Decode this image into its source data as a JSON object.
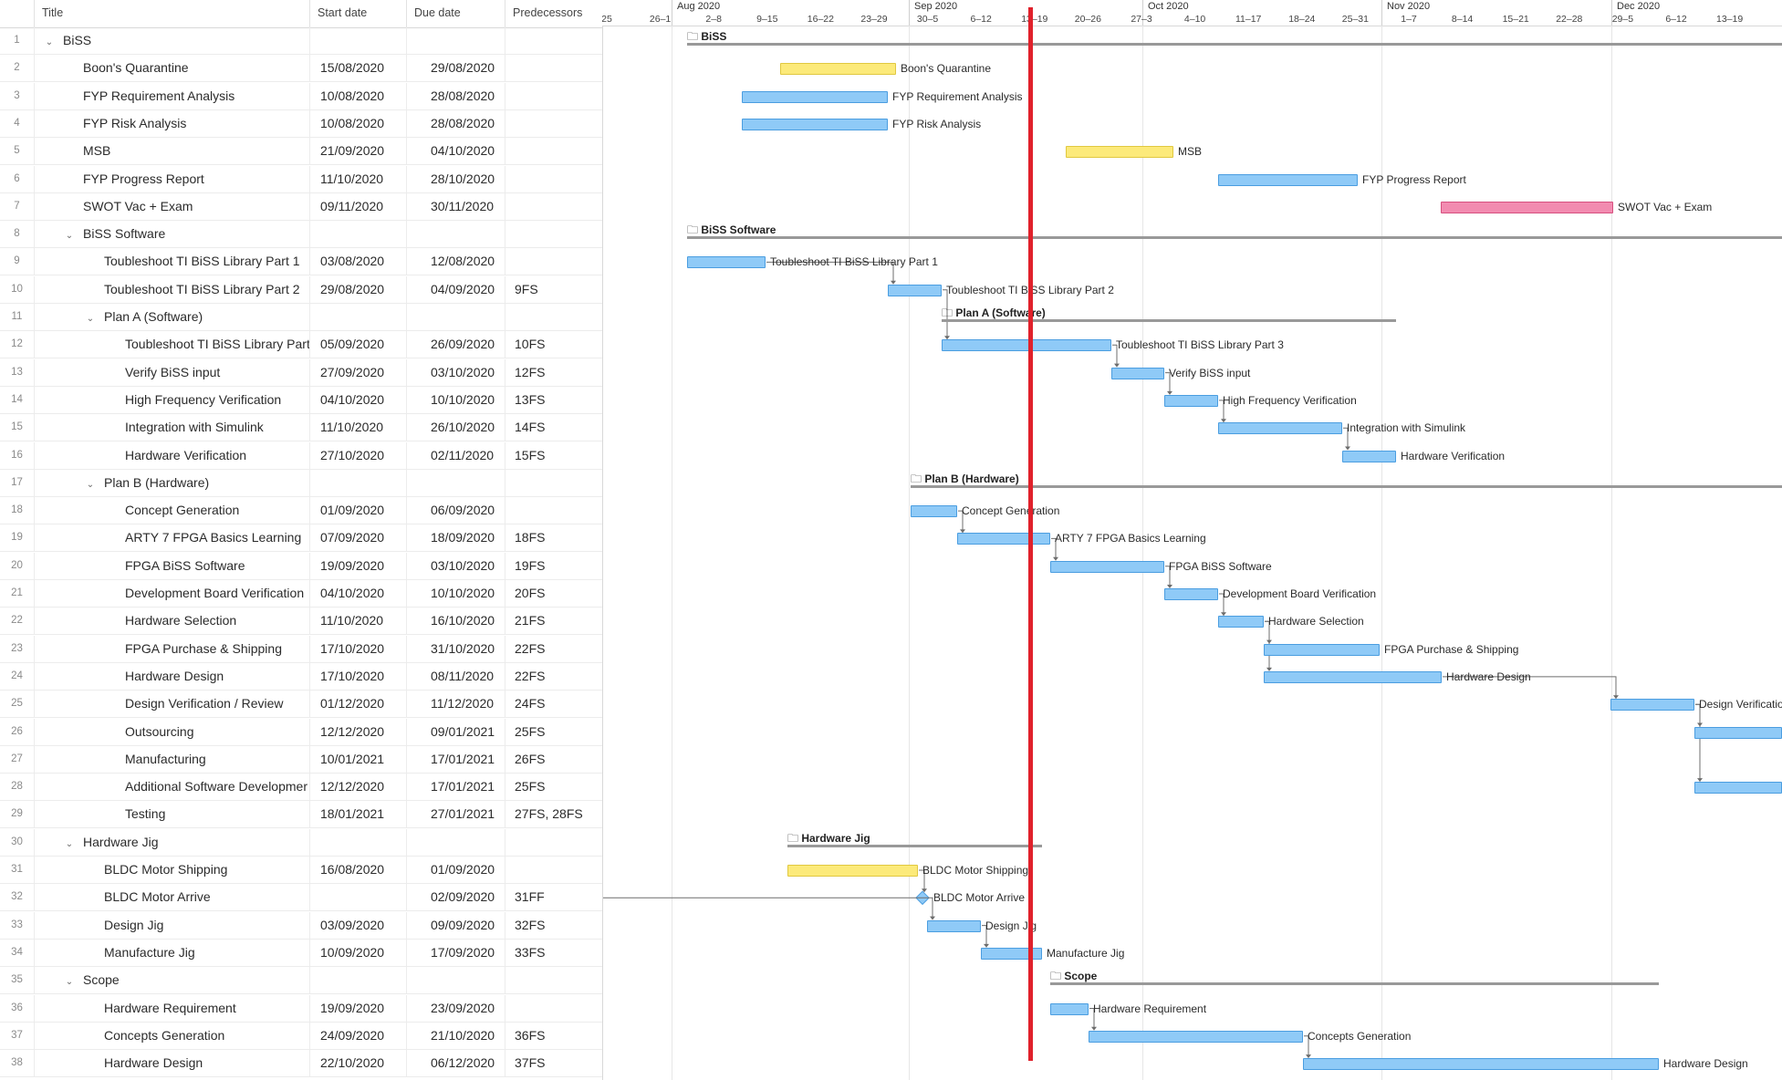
{
  "columns": {
    "num": "",
    "title": "Title",
    "start": "Start date",
    "due": "Due date",
    "pred": "Predecessors"
  },
  "rows": [
    {
      "n": "1",
      "t": "BiSS",
      "s": "",
      "d": "",
      "p": "",
      "lvl": 0,
      "grp": true
    },
    {
      "n": "2",
      "t": "Boon's Quarantine",
      "s": "15/08/2020",
      "d": "29/08/2020",
      "p": "",
      "lvl": 1
    },
    {
      "n": "3",
      "t": "FYP Requirement Analysis",
      "s": "10/08/2020",
      "d": "28/08/2020",
      "p": "",
      "lvl": 1
    },
    {
      "n": "4",
      "t": "FYP Risk Analysis",
      "s": "10/08/2020",
      "d": "28/08/2020",
      "p": "",
      "lvl": 1
    },
    {
      "n": "5",
      "t": "MSB",
      "s": "21/09/2020",
      "d": "04/10/2020",
      "p": "",
      "lvl": 1
    },
    {
      "n": "6",
      "t": "FYP Progress Report",
      "s": "11/10/2020",
      "d": "28/10/2020",
      "p": "",
      "lvl": 1
    },
    {
      "n": "7",
      "t": "SWOT Vac + Exam",
      "s": "09/11/2020",
      "d": "30/11/2020",
      "p": "",
      "lvl": 1
    },
    {
      "n": "8",
      "t": "BiSS Software",
      "s": "",
      "d": "",
      "p": "",
      "lvl": 1,
      "grp": true
    },
    {
      "n": "9",
      "t": "Toubleshoot TI BiSS Library Part 1",
      "s": "03/08/2020",
      "d": "12/08/2020",
      "p": "",
      "lvl": 2
    },
    {
      "n": "10",
      "t": "Toubleshoot TI BiSS Library Part 2",
      "s": "29/08/2020",
      "d": "04/09/2020",
      "p": "9FS",
      "lvl": 2
    },
    {
      "n": "11",
      "t": "Plan A (Software)",
      "s": "",
      "d": "",
      "p": "",
      "lvl": 2,
      "grp": true
    },
    {
      "n": "12",
      "t": "Toubleshoot TI BiSS Library Part",
      "s": "05/09/2020",
      "d": "26/09/2020",
      "p": "10FS",
      "lvl": 3
    },
    {
      "n": "13",
      "t": "Verify BiSS input",
      "s": "27/09/2020",
      "d": "03/10/2020",
      "p": "12FS",
      "lvl": 3
    },
    {
      "n": "14",
      "t": "High Frequency Verification",
      "s": "04/10/2020",
      "d": "10/10/2020",
      "p": "13FS",
      "lvl": 3
    },
    {
      "n": "15",
      "t": "Integration with Simulink",
      "s": "11/10/2020",
      "d": "26/10/2020",
      "p": "14FS",
      "lvl": 3
    },
    {
      "n": "16",
      "t": "Hardware Verification",
      "s": "27/10/2020",
      "d": "02/11/2020",
      "p": "15FS",
      "lvl": 3
    },
    {
      "n": "17",
      "t": "Plan B (Hardware)",
      "s": "",
      "d": "",
      "p": "",
      "lvl": 2,
      "grp": true
    },
    {
      "n": "18",
      "t": "Concept Generation",
      "s": "01/09/2020",
      "d": "06/09/2020",
      "p": "",
      "lvl": 3
    },
    {
      "n": "19",
      "t": "ARTY 7 FPGA Basics Learning",
      "s": "07/09/2020",
      "d": "18/09/2020",
      "p": "18FS",
      "lvl": 3
    },
    {
      "n": "20",
      "t": "FPGA BiSS Software",
      "s": "19/09/2020",
      "d": "03/10/2020",
      "p": "19FS",
      "lvl": 3
    },
    {
      "n": "21",
      "t": "Development Board Verification",
      "s": "04/10/2020",
      "d": "10/10/2020",
      "p": "20FS",
      "lvl": 3
    },
    {
      "n": "22",
      "t": "Hardware Selection",
      "s": "11/10/2020",
      "d": "16/10/2020",
      "p": "21FS",
      "lvl": 3
    },
    {
      "n": "23",
      "t": "FPGA Purchase & Shipping",
      "s": "17/10/2020",
      "d": "31/10/2020",
      "p": "22FS",
      "lvl": 3
    },
    {
      "n": "24",
      "t": "Hardware Design",
      "s": "17/10/2020",
      "d": "08/11/2020",
      "p": "22FS",
      "lvl": 3
    },
    {
      "n": "25",
      "t": "Design Verification / Review",
      "s": "01/12/2020",
      "d": "11/12/2020",
      "p": "24FS",
      "lvl": 3
    },
    {
      "n": "26",
      "t": "Outsourcing",
      "s": "12/12/2020",
      "d": "09/01/2021",
      "p": "25FS",
      "lvl": 3
    },
    {
      "n": "27",
      "t": "Manufacturing",
      "s": "10/01/2021",
      "d": "17/01/2021",
      "p": "26FS",
      "lvl": 3
    },
    {
      "n": "28",
      "t": "Additional Software Developmer",
      "s": "12/12/2020",
      "d": "17/01/2021",
      "p": "25FS",
      "lvl": 3
    },
    {
      "n": "29",
      "t": "Testing",
      "s": "18/01/2021",
      "d": "27/01/2021",
      "p": "27FS, 28FS",
      "lvl": 3
    },
    {
      "n": "30",
      "t": "Hardware Jig",
      "s": "",
      "d": "",
      "p": "",
      "lvl": 1,
      "grp": true
    },
    {
      "n": "31",
      "t": "BLDC Motor Shipping",
      "s": "16/08/2020",
      "d": "01/09/2020",
      "p": "",
      "lvl": 2
    },
    {
      "n": "32",
      "t": "BLDC Motor Arrive",
      "s": "",
      "d": "02/09/2020",
      "p": "31FF",
      "lvl": 2
    },
    {
      "n": "33",
      "t": "Design Jig",
      "s": "03/09/2020",
      "d": "09/09/2020",
      "p": "32FS",
      "lvl": 2
    },
    {
      "n": "34",
      "t": "Manufacture Jig",
      "s": "10/09/2020",
      "d": "17/09/2020",
      "p": "33FS",
      "lvl": 2
    },
    {
      "n": "35",
      "t": "Scope",
      "s": "",
      "d": "",
      "p": "",
      "lvl": 1,
      "grp": true
    },
    {
      "n": "36",
      "t": "Hardware Requirement",
      "s": "19/09/2020",
      "d": "23/09/2020",
      "p": "",
      "lvl": 2
    },
    {
      "n": "37",
      "t": "Concepts Generation",
      "s": "24/09/2020",
      "d": "21/10/2020",
      "p": "36FS",
      "lvl": 2
    },
    {
      "n": "38",
      "t": "Hardware Design",
      "s": "22/10/2020",
      "d": "06/12/2020",
      "p": "37FS",
      "lvl": 2
    }
  ],
  "timeline": {
    "months": [
      "Aug 2020",
      "Sep 2020",
      "Oct 2020",
      "Nov 2020",
      "Dec 2020"
    ],
    "weeks": [
      "25",
      "26–1",
      "2–8",
      "9–15",
      "16–22",
      "23–29",
      "30–5",
      "6–12",
      "13–19",
      "20–26",
      "27–3",
      "4–10",
      "11–17",
      "18–24",
      "25–31",
      "1–7",
      "8–14",
      "15–21",
      "22–28",
      "29–5",
      "6–12",
      "13–19"
    ]
  },
  "gantt": [
    {
      "lbl": "BiSS",
      "kind": "group"
    },
    {
      "lbl": "Boon's Quarantine",
      "kind": "task",
      "color": "yellow"
    },
    {
      "lbl": "FYP Requirement Analysis",
      "kind": "task",
      "color": "blue"
    },
    {
      "lbl": "FYP Risk Analysis",
      "kind": "task",
      "color": "blue"
    },
    {
      "lbl": "MSB",
      "kind": "task",
      "color": "yellow"
    },
    {
      "lbl": "FYP Progress Report",
      "kind": "task",
      "color": "blue"
    },
    {
      "lbl": "SWOT Vac + Exam",
      "kind": "task",
      "color": "pink"
    },
    {
      "lbl": "BiSS Software",
      "kind": "group"
    },
    {
      "lbl": "Toubleshoot TI BiSS Library Part 1",
      "kind": "task",
      "color": "blue"
    },
    {
      "lbl": "Toubleshoot TI BiSS Library Part 2",
      "kind": "task",
      "color": "blue"
    },
    {
      "lbl": "Plan A (Software)",
      "kind": "group"
    },
    {
      "lbl": "Toubleshoot TI BiSS Library Part 3",
      "kind": "task",
      "color": "blue"
    },
    {
      "lbl": "Verify BiSS input",
      "kind": "task",
      "color": "blue"
    },
    {
      "lbl": "High Frequency Verification",
      "kind": "task",
      "color": "blue"
    },
    {
      "lbl": "Integration with Simulink",
      "kind": "task",
      "color": "blue"
    },
    {
      "lbl": "Hardware Verification",
      "kind": "task",
      "color": "blue"
    },
    {
      "lbl": "Plan B (Hardware)",
      "kind": "group"
    },
    {
      "lbl": "Concept Generation",
      "kind": "task",
      "color": "blue"
    },
    {
      "lbl": "ARTY 7 FPGA Basics Learning",
      "kind": "task",
      "color": "blue"
    },
    {
      "lbl": "FPGA BiSS Software",
      "kind": "task",
      "color": "blue"
    },
    {
      "lbl": "Development Board Verification",
      "kind": "task",
      "color": "blue"
    },
    {
      "lbl": "Hardware Selection",
      "kind": "task",
      "color": "blue"
    },
    {
      "lbl": "FPGA Purchase & Shipping",
      "kind": "task",
      "color": "blue"
    },
    {
      "lbl": "Hardware Design",
      "kind": "task",
      "color": "blue"
    },
    {
      "lbl": "Design Verification",
      "kind": "task",
      "color": "blue"
    },
    {
      "lbl": "",
      "kind": "task",
      "color": "blue"
    },
    {
      "lbl": "",
      "kind": "task",
      "color": "blue"
    },
    {
      "lbl": "",
      "kind": "task",
      "color": "blue"
    },
    {
      "lbl": "",
      "kind": "task",
      "color": "blue"
    },
    {
      "lbl": "Hardware Jig",
      "kind": "group"
    },
    {
      "lbl": "BLDC Motor Shipping",
      "kind": "task",
      "color": "yellow"
    },
    {
      "lbl": "BLDC Motor Arrive",
      "kind": "milestone",
      "color": "blue"
    },
    {
      "lbl": "Design Jig",
      "kind": "task",
      "color": "blue"
    },
    {
      "lbl": "Manufacture Jig",
      "kind": "task",
      "color": "blue"
    },
    {
      "lbl": "Scope",
      "kind": "group"
    },
    {
      "lbl": "Hardware Requirement",
      "kind": "task",
      "color": "blue"
    },
    {
      "lbl": "Concepts Generation",
      "kind": "task",
      "color": "blue"
    },
    {
      "lbl": "Hardware Design",
      "kind": "task",
      "color": "blue"
    }
  ]
}
